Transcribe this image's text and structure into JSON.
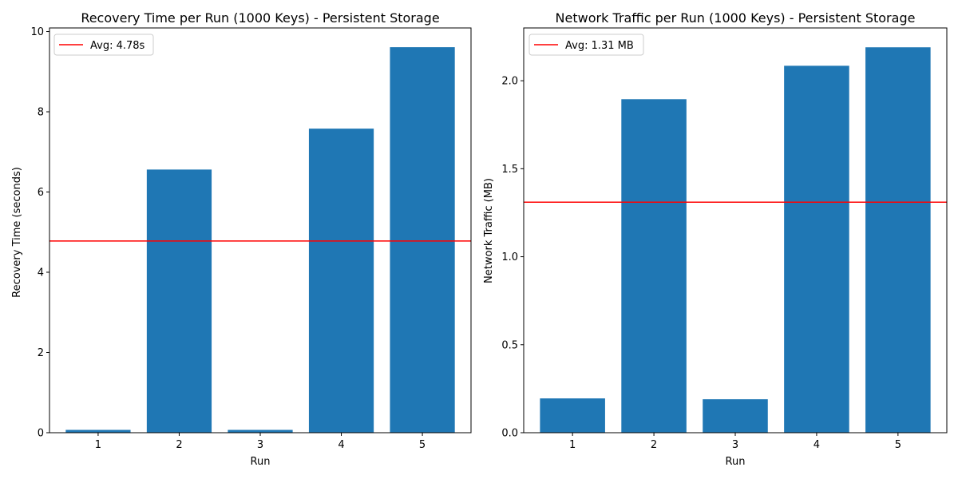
{
  "chart_data": [
    {
      "type": "bar",
      "title": "Recovery Time per Run (1000 Keys) - Persistent Storage",
      "xlabel": "Run",
      "ylabel": "Recovery Time (seconds)",
      "categories": [
        "1",
        "2",
        "3",
        "4",
        "5"
      ],
      "values": [
        0.07,
        6.56,
        0.07,
        7.58,
        9.61
      ],
      "ylim": [
        0,
        10.09
      ],
      "yticks": [
        0,
        2,
        4,
        6,
        8,
        10
      ],
      "ytick_labels": [
        "0",
        "2",
        "4",
        "6",
        "8",
        "10"
      ],
      "bar_color": "#1f77b4",
      "avg_line": {
        "value": 4.78,
        "label": "Avg: 4.78s",
        "color": "#ff0000"
      },
      "legend_position": "top-left",
      "grid": false
    },
    {
      "type": "bar",
      "title": "Network Traffic per Run (1000 Keys) - Persistent Storage",
      "xlabel": "Run",
      "ylabel": "Network Traffic (MB)",
      "categories": [
        "1",
        "2",
        "3",
        "4",
        "5"
      ],
      "values": [
        0.195,
        1.895,
        0.19,
        2.085,
        2.19
      ],
      "ylim": [
        0,
        2.3
      ],
      "yticks": [
        0,
        0.5,
        1.0,
        1.5,
        2.0
      ],
      "ytick_labels": [
        "0.0",
        "0.5",
        "1.0",
        "1.5",
        "2.0"
      ],
      "bar_color": "#1f77b4",
      "avg_line": {
        "value": 1.31,
        "label": "Avg: 1.31 MB",
        "color": "#ff0000"
      },
      "legend_position": "top-left",
      "grid": false
    }
  ]
}
